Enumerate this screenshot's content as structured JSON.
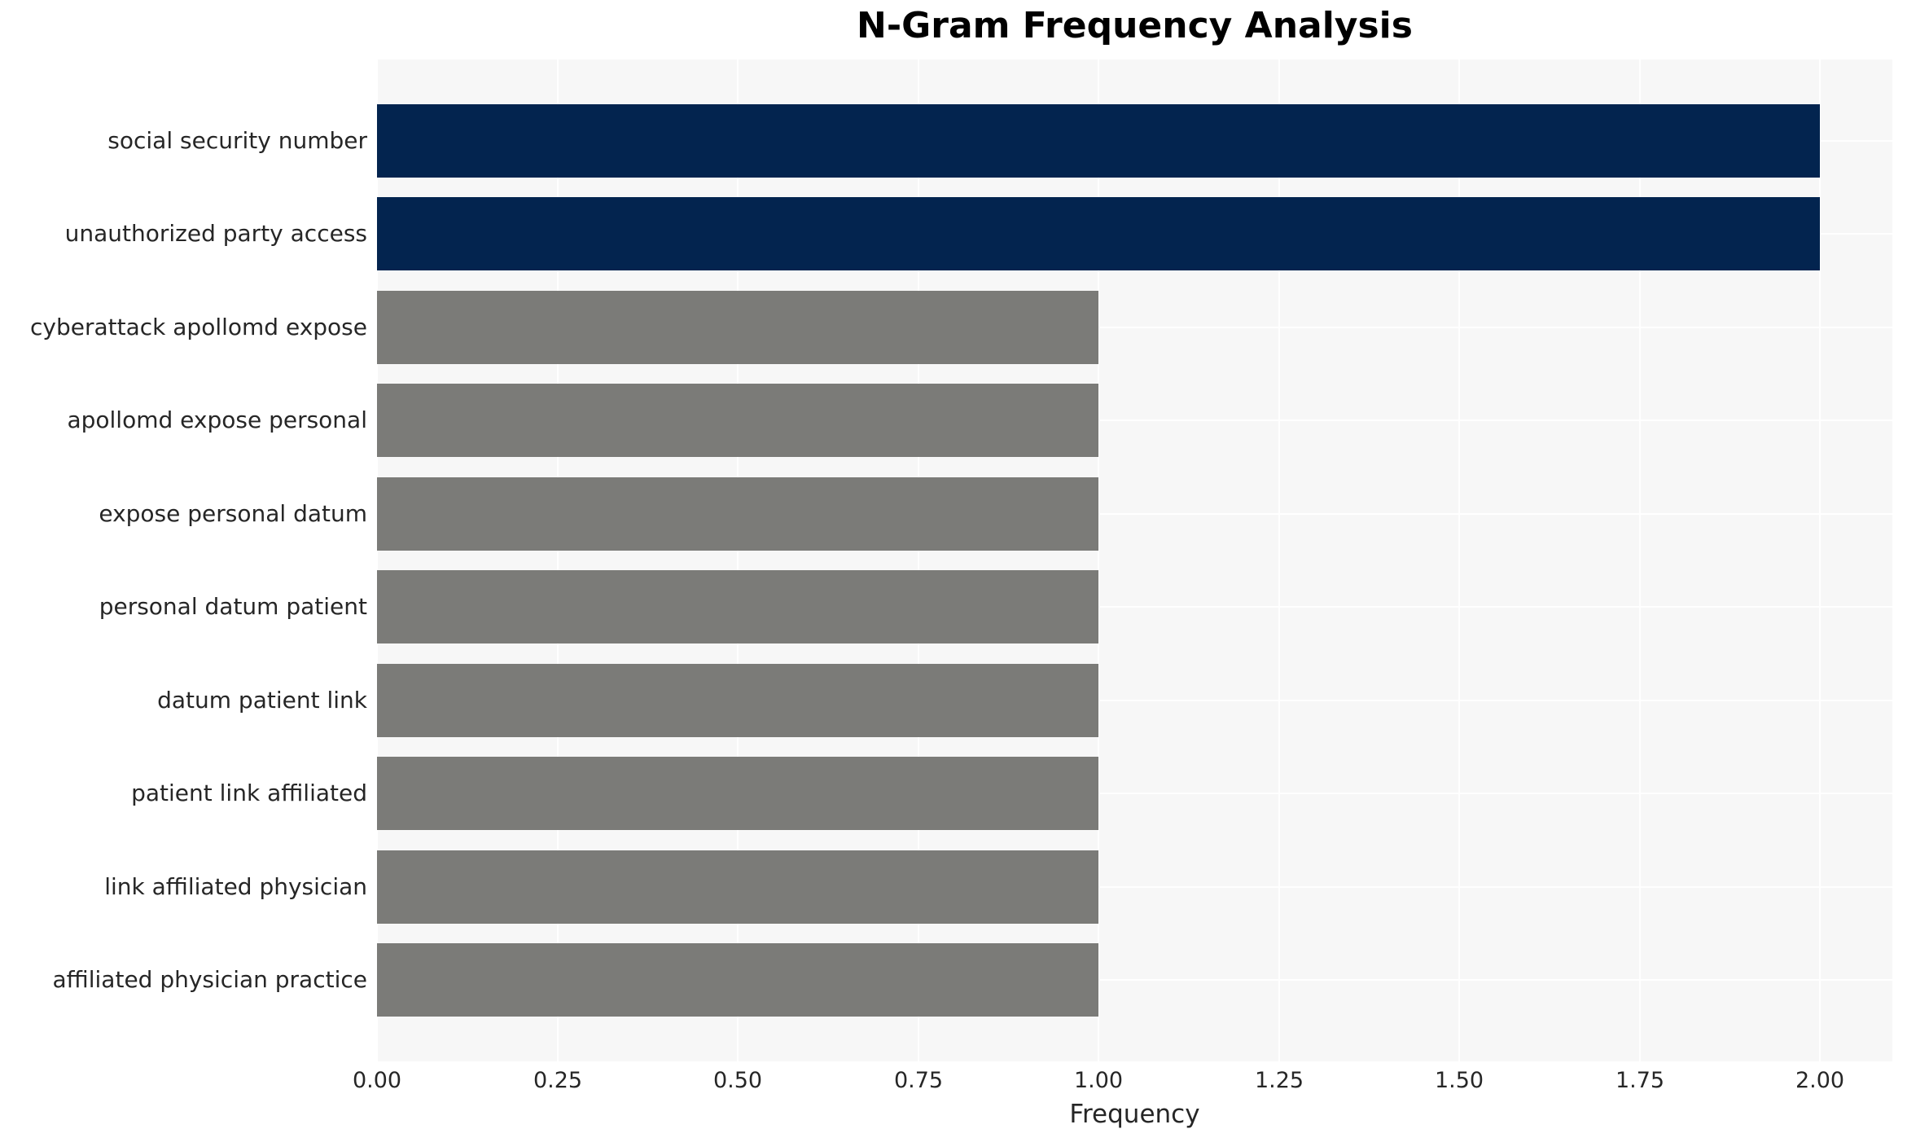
{
  "title": "N-Gram Frequency Analysis",
  "colors": {
    "bar_highlight": "#03244f",
    "bar_default": "#7b7b78",
    "plot_background": "#f7f7f7",
    "gridline": "#ffffff",
    "tick_text": "#262626",
    "title_text": "#000000"
  },
  "chart_data": {
    "type": "bar",
    "orientation": "horizontal",
    "title": "N-Gram Frequency Analysis",
    "xlabel": "Frequency",
    "ylabel": "",
    "grid": true,
    "legend": false,
    "xlim": [
      0,
      2.1
    ],
    "x_tick_labels": [
      "0.00",
      "0.25",
      "0.50",
      "0.75",
      "1.00",
      "1.25",
      "1.50",
      "1.75",
      "2.00"
    ],
    "x_ticks": [
      0.0,
      0.25,
      0.5,
      0.75,
      1.0,
      1.25,
      1.5,
      1.75,
      2.0
    ],
    "categories": [
      "social security number",
      "unauthorized party access",
      "cyberattack apollomd expose",
      "apollomd expose personal",
      "expose personal datum",
      "personal datum patient",
      "datum patient link",
      "patient link affiliated",
      "link affiliated physician",
      "affiliated physician practice"
    ],
    "values": [
      2,
      2,
      1,
      1,
      1,
      1,
      1,
      1,
      1,
      1
    ],
    "bar_colors": [
      "#03244f",
      "#03244f",
      "#7b7b78",
      "#7b7b78",
      "#7b7b78",
      "#7b7b78",
      "#7b7b78",
      "#7b7b78",
      "#7b7b78",
      "#7b7b78"
    ]
  }
}
